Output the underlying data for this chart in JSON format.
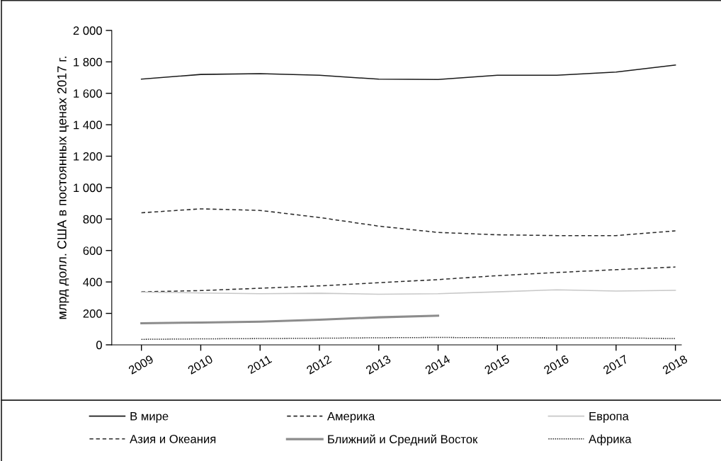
{
  "chart_data": {
    "type": "line",
    "ylabel": "млрд долл. США в постоянных ценах 2017 г.",
    "categories": [
      "2009",
      "2010",
      "2011",
      "2012",
      "2013",
      "2014",
      "2015",
      "2016",
      "2017",
      "2018"
    ],
    "series": [
      {
        "name": "В мире",
        "color": "#1a1a1a",
        "line_style": "solid",
        "values": [
          1690,
          1720,
          1725,
          1715,
          1690,
          1688,
          1715,
          1715,
          1735,
          1780
        ]
      },
      {
        "name": "Азия и Океания",
        "color": "#2a2a2a",
        "line_style": "dashed",
        "values": [
          337,
          345,
          360,
          375,
          395,
          415,
          440,
          460,
          478,
          495
        ]
      },
      {
        "name": "Америка",
        "color": "#2a2a2a",
        "line_style": "dashed",
        "values": [
          840,
          865,
          855,
          810,
          755,
          715,
          700,
          695,
          695,
          725
        ]
      },
      {
        "name": "Ближний и Средний Восток",
        "color": "#8c8c8c",
        "line_style": "solid",
        "values": [
          137,
          142,
          147,
          160,
          175,
          185,
          null,
          null,
          null,
          null
        ]
      },
      {
        "name": "Европа",
        "color": "#c8c8c8",
        "line_style": "solid",
        "values": [
          335,
          330,
          325,
          328,
          322,
          325,
          337,
          350,
          342,
          347
        ]
      },
      {
        "name": "Африка",
        "color": "#2a2a2a",
        "line_style": "dotted",
        "values": [
          35,
          38,
          40,
          42,
          45,
          47,
          45,
          44,
          44,
          40
        ]
      }
    ],
    "ylim": [
      0,
      2000
    ],
    "yticks": [
      0,
      200,
      400,
      600,
      800,
      {
        "value": 1000,
        "label": "1 000"
      },
      {
        "value": 1200,
        "label": "1 200"
      },
      {
        "value": 1400,
        "label": "1 400"
      },
      {
        "value": 1600,
        "label": "1 600"
      },
      {
        "value": 1800,
        "label": "1 800"
      },
      {
        "value": 2000,
        "label": "2 000"
      }
    ],
    "grid": false,
    "legend": "bottom"
  }
}
